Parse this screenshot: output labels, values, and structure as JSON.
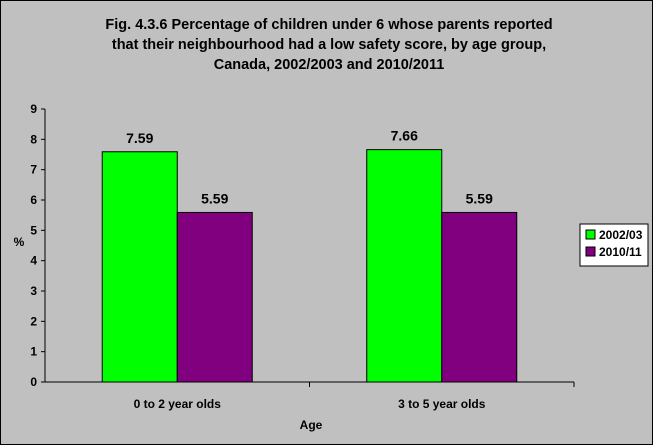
{
  "chart_data": {
    "type": "bar",
    "title_lines": [
      "Fig. 4.3.6 Percentage of children under 6 whose parents reported",
      "that their neighbourhood had a low safety score, by age group,",
      "Canada, 2002/2003 and 2010/2011"
    ],
    "xlabel": "Age",
    "ylabel": "%",
    "ylim": [
      0,
      9
    ],
    "yticks": [
      0,
      1,
      2,
      3,
      4,
      5,
      6,
      7,
      8,
      9
    ],
    "categories": [
      "0 to 2 year olds",
      "3 to 5 year olds"
    ],
    "series": [
      {
        "name": "2002/03",
        "color": "#00ff00",
        "values": [
          7.59,
          7.66
        ],
        "labels": [
          "7.59",
          "7.66"
        ]
      },
      {
        "name": "2010/11",
        "color": "#800080",
        "values": [
          5.59,
          5.59
        ],
        "labels": [
          "5.59",
          "5.59"
        ]
      }
    ],
    "grid": false,
    "legend": "right",
    "plot_background": "#c0c0c0"
  }
}
